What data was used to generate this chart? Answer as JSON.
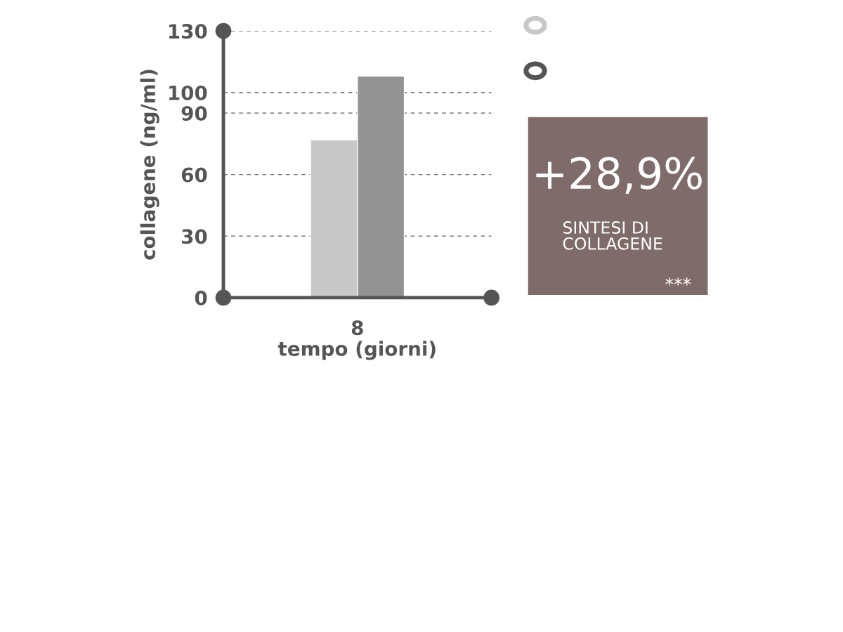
{
  "chart_data": {
    "type": "bar",
    "xlabel": "tempo (giorni)",
    "ylabel": "collagene (ng/ml)",
    "categories": [
      "8"
    ],
    "series": [
      {
        "color": "#c8c8c8",
        "values": [
          77
        ]
      },
      {
        "color": "#939393",
        "values": [
          108
        ]
      }
    ],
    "ylim": [
      0,
      130
    ],
    "yticks": [
      0,
      30,
      60,
      90,
      100,
      130
    ],
    "grid": "y",
    "annotations": [
      "+28,9%",
      "SINTESI DI COLLAGENE",
      "***"
    ]
  }
}
